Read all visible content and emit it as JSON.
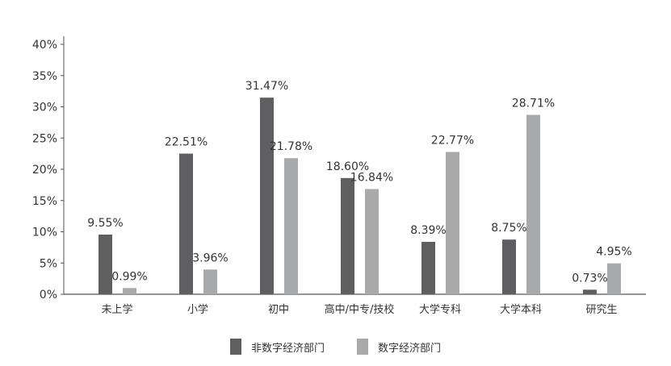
{
  "chart_data": {
    "type": "bar",
    "categories": [
      "未上学",
      "小学",
      "初中",
      "高中/中专/技校",
      "大学专科",
      "大学本科",
      "研究生"
    ],
    "series": [
      {
        "name": "非数字经济部门",
        "color": "#5f5f61",
        "values": [
          9.55,
          22.51,
          31.47,
          18.6,
          8.39,
          8.75,
          0.73
        ],
        "labels": [
          "9.55%",
          "22.51%",
          "31.47%",
          "18.60%",
          "8.39%",
          "8.75%",
          "0.73%"
        ]
      },
      {
        "name": "数字经济部门",
        "color": "#a8a9ab",
        "values": [
          0.99,
          3.96,
          21.78,
          16.84,
          22.77,
          28.71,
          4.95
        ],
        "labels": [
          "0.99%",
          "3.96%",
          "21.78%",
          "16.84%",
          "22.77%",
          "28.71%",
          "4.95%"
        ]
      }
    ],
    "yticks": [
      "0%",
      "5%",
      "10%",
      "15%",
      "20%",
      "25%",
      "30%",
      "35%",
      "40%"
    ],
    "ylim": [
      0,
      40
    ],
    "grid": false,
    "legend_position": "bottom"
  }
}
